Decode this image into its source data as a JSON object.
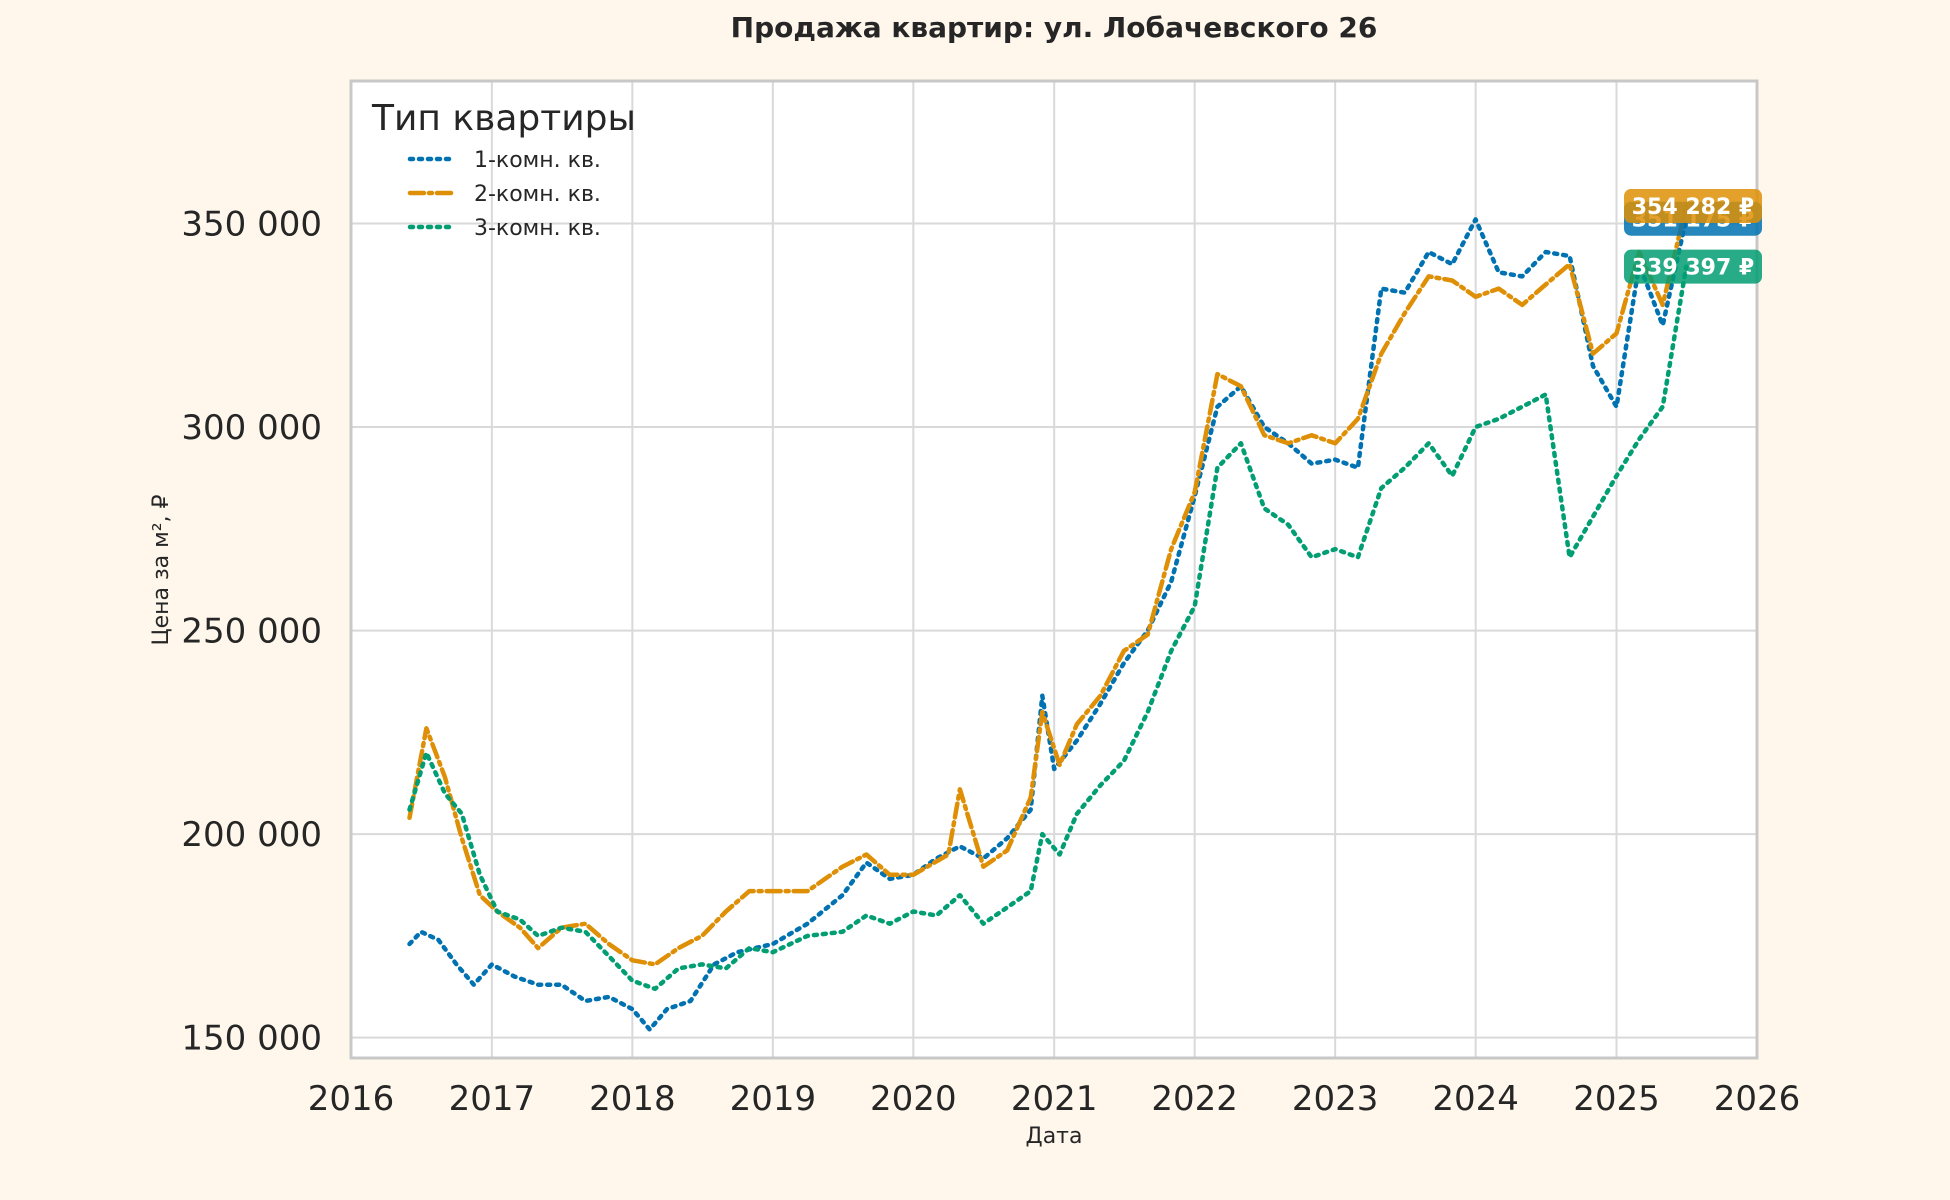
{
  "colors": {
    "background": "#fff7ec",
    "plot_background": "#ffffff",
    "grid": "#d9d9d9",
    "frame": "#c8c8c8",
    "text": "#262626"
  },
  "chart_data": {
    "type": "line",
    "title": "Продажа квартир: ул. Лобачевского 26",
    "xlabel": "Дата",
    "ylabel": "Цена за м², ₽",
    "x_range": [
      "2016-01-01",
      "2026-01-01"
    ],
    "ylim": [
      145000,
      385000
    ],
    "x_ticks": [
      "2016",
      "2017",
      "2018",
      "2019",
      "2020",
      "2021",
      "2022",
      "2023",
      "2024",
      "2025",
      "2026"
    ],
    "y_ticks": [
      "150 000",
      "200 000",
      "250 000",
      "300 000",
      "350 000"
    ],
    "grid": true,
    "legend": {
      "title": "Тип квартиры",
      "position": "top-left"
    },
    "series": [
      {
        "name": "1-комн. кв.",
        "color": "#0072b2",
        "dash": "dotted",
        "last_value_label": "351 175 ₽",
        "points": [
          [
            "2016-06-01",
            173000
          ],
          [
            "2016-07-01",
            176000
          ],
          [
            "2016-08-15",
            174000
          ],
          [
            "2016-10-01",
            168000
          ],
          [
            "2016-11-15",
            163000
          ],
          [
            "2017-01-01",
            168000
          ],
          [
            "2017-03-01",
            165000
          ],
          [
            "2017-05-01",
            163000
          ],
          [
            "2017-07-01",
            163000
          ],
          [
            "2017-09-01",
            159000
          ],
          [
            "2017-11-01",
            160000
          ],
          [
            "2018-01-01",
            157000
          ],
          [
            "2018-02-15",
            152000
          ],
          [
            "2018-04-01",
            157000
          ],
          [
            "2018-06-01",
            159000
          ],
          [
            "2018-08-01",
            168000
          ],
          [
            "2018-10-01",
            171000
          ],
          [
            "2019-01-01",
            173000
          ],
          [
            "2019-04-01",
            178000
          ],
          [
            "2019-07-01",
            185000
          ],
          [
            "2019-09-01",
            193000
          ],
          [
            "2019-11-01",
            189000
          ],
          [
            "2020-01-01",
            190000
          ],
          [
            "2020-03-01",
            194000
          ],
          [
            "2020-05-01",
            197000
          ],
          [
            "2020-07-01",
            194000
          ],
          [
            "2020-09-01",
            199000
          ],
          [
            "2020-11-01",
            206000
          ],
          [
            "2020-12-01",
            234000
          ],
          [
            "2021-01-01",
            216000
          ],
          [
            "2021-03-01",
            223000
          ],
          [
            "2021-05-01",
            232000
          ],
          [
            "2021-07-01",
            242000
          ],
          [
            "2021-09-01",
            250000
          ],
          [
            "2021-11-01",
            262000
          ],
          [
            "2022-01-01",
            283000
          ],
          [
            "2022-03-01",
            305000
          ],
          [
            "2022-05-01",
            310000
          ],
          [
            "2022-07-01",
            300000
          ],
          [
            "2022-09-01",
            296000
          ],
          [
            "2022-11-01",
            291000
          ],
          [
            "2023-01-01",
            292000
          ],
          [
            "2023-03-01",
            290000
          ],
          [
            "2023-05-01",
            334000
          ],
          [
            "2023-07-01",
            333000
          ],
          [
            "2023-09-01",
            343000
          ],
          [
            "2023-11-01",
            340000
          ],
          [
            "2024-01-01",
            351000
          ],
          [
            "2024-03-01",
            338000
          ],
          [
            "2024-05-01",
            337000
          ],
          [
            "2024-07-01",
            343000
          ],
          [
            "2024-09-01",
            342000
          ],
          [
            "2024-11-01",
            315000
          ],
          [
            "2025-01-01",
            305000
          ],
          [
            "2025-03-01",
            340000
          ],
          [
            "2025-05-01",
            325000
          ],
          [
            "2025-07-01",
            351175
          ]
        ]
      },
      {
        "name": "2-комн. кв.",
        "color": "#de8f05",
        "dash": "dashdot",
        "last_value_label": "354 282 ₽",
        "points": [
          [
            "2016-06-01",
            204000
          ],
          [
            "2016-07-15",
            226000
          ],
          [
            "2016-09-01",
            214000
          ],
          [
            "2016-10-15",
            199000
          ],
          [
            "2016-12-01",
            185000
          ],
          [
            "2017-01-15",
            181000
          ],
          [
            "2017-03-15",
            177000
          ],
          [
            "2017-05-01",
            172000
          ],
          [
            "2017-07-01",
            177000
          ],
          [
            "2017-09-01",
            178000
          ],
          [
            "2017-11-01",
            173000
          ],
          [
            "2018-01-01",
            169000
          ],
          [
            "2018-03-01",
            168000
          ],
          [
            "2018-05-01",
            172000
          ],
          [
            "2018-07-01",
            175000
          ],
          [
            "2018-09-01",
            181000
          ],
          [
            "2018-11-01",
            186000
          ],
          [
            "2019-01-01",
            186000
          ],
          [
            "2019-04-01",
            186000
          ],
          [
            "2019-07-01",
            192000
          ],
          [
            "2019-09-01",
            195000
          ],
          [
            "2019-11-01",
            190000
          ],
          [
            "2020-01-01",
            190000
          ],
          [
            "2020-04-01",
            195000
          ],
          [
            "2020-05-01",
            211000
          ],
          [
            "2020-07-01",
            192000
          ],
          [
            "2020-09-01",
            196000
          ],
          [
            "2020-11-01",
            209000
          ],
          [
            "2020-12-01",
            230000
          ],
          [
            "2021-01-15",
            217000
          ],
          [
            "2021-03-01",
            227000
          ],
          [
            "2021-05-01",
            234000
          ],
          [
            "2021-07-01",
            245000
          ],
          [
            "2021-09-01",
            249000
          ],
          [
            "2021-11-01",
            270000
          ],
          [
            "2022-01-01",
            284000
          ],
          [
            "2022-03-01",
            313000
          ],
          [
            "2022-05-01",
            310000
          ],
          [
            "2022-07-01",
            298000
          ],
          [
            "2022-09-01",
            296000
          ],
          [
            "2022-11-01",
            298000
          ],
          [
            "2023-01-01",
            296000
          ],
          [
            "2023-03-01",
            302000
          ],
          [
            "2023-05-01",
            318000
          ],
          [
            "2023-07-01",
            328000
          ],
          [
            "2023-09-01",
            337000
          ],
          [
            "2023-11-01",
            336000
          ],
          [
            "2024-01-01",
            332000
          ],
          [
            "2024-03-01",
            334000
          ],
          [
            "2024-05-01",
            330000
          ],
          [
            "2024-07-01",
            335000
          ],
          [
            "2024-09-01",
            340000
          ],
          [
            "2024-11-01",
            318000
          ],
          [
            "2025-01-01",
            323000
          ],
          [
            "2025-03-01",
            343000
          ],
          [
            "2025-05-01",
            330000
          ],
          [
            "2025-07-01",
            354282
          ]
        ]
      },
      {
        "name": "3-комн. кв.",
        "color": "#029e73",
        "dash": "dotted",
        "last_value_label": "339 397 ₽",
        "points": [
          [
            "2016-06-01",
            206000
          ],
          [
            "2016-07-15",
            220000
          ],
          [
            "2016-09-01",
            210000
          ],
          [
            "2016-10-15",
            205000
          ],
          [
            "2016-12-01",
            190000
          ],
          [
            "2017-01-15",
            181000
          ],
          [
            "2017-03-15",
            179000
          ],
          [
            "2017-05-01",
            175000
          ],
          [
            "2017-07-01",
            177000
          ],
          [
            "2017-09-01",
            176000
          ],
          [
            "2017-11-01",
            170000
          ],
          [
            "2018-01-01",
            164000
          ],
          [
            "2018-03-01",
            162000
          ],
          [
            "2018-05-01",
            167000
          ],
          [
            "2018-07-01",
            168000
          ],
          [
            "2018-09-01",
            167000
          ],
          [
            "2018-11-01",
            172000
          ],
          [
            "2019-01-01",
            171000
          ],
          [
            "2019-04-01",
            175000
          ],
          [
            "2019-07-01",
            176000
          ],
          [
            "2019-09-01",
            180000
          ],
          [
            "2019-11-01",
            178000
          ],
          [
            "2020-01-01",
            181000
          ],
          [
            "2020-03-01",
            180000
          ],
          [
            "2020-05-01",
            185000
          ],
          [
            "2020-07-01",
            178000
          ],
          [
            "2020-09-01",
            182000
          ],
          [
            "2020-11-01",
            186000
          ],
          [
            "2020-12-01",
            200000
          ],
          [
            "2021-01-15",
            195000
          ],
          [
            "2021-03-01",
            205000
          ],
          [
            "2021-05-01",
            212000
          ],
          [
            "2021-07-01",
            218000
          ],
          [
            "2021-09-01",
            230000
          ],
          [
            "2021-11-01",
            245000
          ],
          [
            "2022-01-01",
            256000
          ],
          [
            "2022-03-01",
            290000
          ],
          [
            "2022-05-01",
            296000
          ],
          [
            "2022-07-01",
            280000
          ],
          [
            "2022-09-01",
            276000
          ],
          [
            "2022-11-01",
            268000
          ],
          [
            "2023-01-01",
            270000
          ],
          [
            "2023-03-01",
            268000
          ],
          [
            "2023-05-01",
            285000
          ],
          [
            "2023-07-01",
            290000
          ],
          [
            "2023-09-01",
            296000
          ],
          [
            "2023-11-01",
            288000
          ],
          [
            "2024-01-01",
            300000
          ],
          [
            "2024-03-01",
            302000
          ],
          [
            "2024-05-01",
            305000
          ],
          [
            "2024-07-01",
            308000
          ],
          [
            "2024-09-01",
            268000
          ],
          [
            "2024-11-01",
            278000
          ],
          [
            "2025-01-01",
            288000
          ],
          [
            "2025-03-01",
            297000
          ],
          [
            "2025-05-01",
            305000
          ],
          [
            "2025-07-01",
            339397
          ]
        ]
      }
    ]
  }
}
